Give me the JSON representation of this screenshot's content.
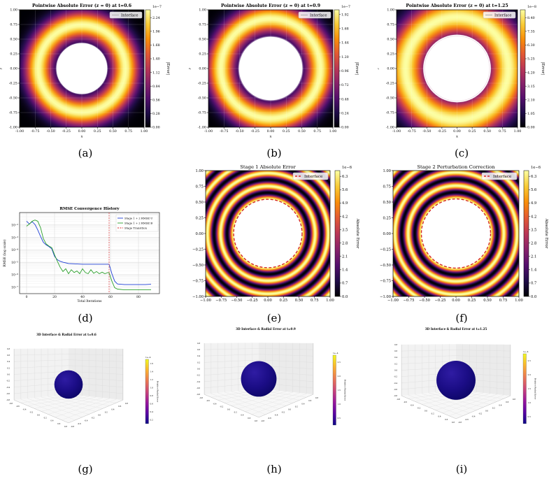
{
  "palette": {
    "inferno": [
      "#000004",
      "#1f0c48",
      "#550f6d",
      "#88226a",
      "#ba3655",
      "#e35933",
      "#f98e09",
      "#f9cb35",
      "#fcffa4"
    ],
    "plasma": [
      "#0d0887",
      "#5b02a3",
      "#9a179b",
      "#cb4678",
      "#eb7852",
      "#fbb32f",
      "#f0f921"
    ],
    "interface_white": "#ffffff",
    "interface_red": "#d62728",
    "stage1_line": "#1f3fd6",
    "stage2_line": "#2ca02c",
    "transition_line": "#d62728"
  },
  "subfigure_labels": [
    "(a)",
    "(b)",
    "(c)",
    "(d)",
    "(e)",
    "(f)",
    "(g)",
    "(h)",
    "(i)"
  ],
  "chart_data": [
    {
      "type": "heatmap",
      "title": "Pointwise Absolute Error (z = 0) at t=0.6",
      "xlabel": "x",
      "ylabel": "y",
      "xlim": [
        -1.0,
        1.0
      ],
      "ylim": [
        -1.0,
        1.0
      ],
      "xticks": [
        "-1.00",
        "-0.75",
        "-0.50",
        "-0.25",
        "0.00",
        "0.25",
        "0.50",
        "0.75",
        "1.00"
      ],
      "yticks": [
        "1.00",
        "0.75",
        "0.50",
        "0.25",
        "0.00",
        "-0.25",
        "-0.50",
        "-0.75",
        "-1.00"
      ],
      "interface_radius": 0.4,
      "peak_radius": 0.7,
      "ring_width": 0.22,
      "legend": [
        "Interface"
      ],
      "colorbar": {
        "label": "|Error|",
        "exponent": "1e−7",
        "ticks": [
          "2.24",
          "1.96",
          "1.68",
          "1.40",
          "1.12",
          "0.84",
          "0.56",
          "0.28",
          "0.00"
        ],
        "range": [
          0,
          2.4
        ]
      }
    },
    {
      "type": "heatmap",
      "title": "Pointwise Absolute Error (z = 0) at t=0.9",
      "xlabel": "x",
      "ylabel": "y",
      "xlim": [
        -1.0,
        1.0
      ],
      "ylim": [
        -1.0,
        1.0
      ],
      "xticks": [
        "-1.00",
        "-0.75",
        "-0.50",
        "-0.25",
        "0.00",
        "0.25",
        "0.50",
        "0.75",
        "1.00"
      ],
      "yticks": [
        "1.00",
        "0.75",
        "0.50",
        "0.25",
        "0.00",
        "-0.25",
        "-0.50",
        "-0.75",
        "-1.00"
      ],
      "interface_radius": 0.5,
      "peak_radius": 0.8,
      "ring_width": 0.22,
      "legend": [
        "Interface"
      ],
      "colorbar": {
        "label": "|Error|",
        "exponent": "1e−7",
        "ticks": [
          "1.92",
          "1.68",
          "1.44",
          "1.20",
          "0.96",
          "0.72",
          "0.48",
          "0.24",
          "0.00"
        ],
        "range": [
          0,
          2.0
        ]
      }
    },
    {
      "type": "heatmap",
      "title": "Pointwise Absolute Error (z = 0) at t=1.25",
      "xlabel": "x",
      "ylabel": "y",
      "xlim": [
        -1.0,
        1.0
      ],
      "ylim": [
        -1.0,
        1.0
      ],
      "xticks": [
        "-1.00",
        "-0.75",
        "-0.50",
        "-0.25",
        "0.00",
        "0.25",
        "0.50",
        "0.75",
        "1.00"
      ],
      "yticks": [
        "1.00",
        "0.75",
        "0.50",
        "0.25",
        "0.00",
        "-0.25",
        "-0.50",
        "-0.75",
        "-1.00"
      ],
      "interface_radius": 0.55,
      "peak_radius": 0.85,
      "ring_width": 0.3,
      "legend": [
        "Interface"
      ],
      "colorbar": {
        "label": "|Error|",
        "exponent": "1e−8",
        "ticks": [
          "8.40",
          "7.35",
          "6.30",
          "5.25",
          "4.20",
          "3.15",
          "2.10",
          "1.05",
          "0.00"
        ],
        "range": [
          0,
          9.0
        ]
      }
    },
    {
      "type": "line",
      "title": "RMSE Convergence History",
      "xlabel": "Total Iterations",
      "ylabel": "RMSE (log scale)",
      "xlim": [
        -5,
        95
      ],
      "log_y": true,
      "ylim": [
        3e-08,
        0.1
      ],
      "xticks": [
        0,
        20,
        40,
        60,
        80
      ],
      "yticks": [
        {
          "v": 0.01,
          "label": "10⁻²"
        },
        {
          "v": 0.001,
          "label": "10⁻³"
        },
        {
          "v": 0.0001,
          "label": "10⁻⁴"
        },
        {
          "v": 1e-05,
          "label": "10⁻⁵"
        },
        {
          "v": 1e-06,
          "label": "10⁻⁶"
        },
        {
          "v": 1e-07,
          "label": "10⁻⁷"
        }
      ],
      "vline": {
        "x": 59,
        "name": "Stage Transition"
      },
      "series": [
        {
          "name": "Stage 1 + 2 RMSE U",
          "x": [
            0,
            2,
            4,
            6,
            8,
            10,
            12,
            14,
            16,
            18,
            20,
            22,
            24,
            26,
            28,
            30,
            35,
            40,
            45,
            50,
            55,
            58,
            59,
            61,
            63,
            65,
            70,
            75,
            80,
            85,
            89
          ],
          "y": [
            0.02,
            0.012,
            0.018,
            0.011,
            0.004,
            0.0012,
            0.0004,
            0.00025,
            0.00018,
            0.00012,
            3e-05,
            1.6e-05,
            1.2e-05,
            1e-05,
            9e-06,
            8e-06,
            7.5e-06,
            7e-06,
            7e-06,
            7e-06,
            7e-06,
            7e-06,
            7e-06,
            1.2e-06,
            3e-07,
            1.8e-07,
            1.6e-07,
            1.6e-07,
            1.6e-07,
            1.6e-07,
            1.7e-07
          ]
        },
        {
          "name": "Stage 1 + 2 RMSE B",
          "x": [
            0,
            2,
            4,
            6,
            8,
            10,
            12,
            14,
            16,
            18,
            20,
            22,
            24,
            26,
            28,
            30,
            32,
            34,
            36,
            38,
            40,
            42,
            44,
            46,
            48,
            50,
            52,
            54,
            56,
            58,
            59,
            61,
            63,
            65,
            70,
            75,
            80,
            85,
            89
          ],
          "y": [
            0.008,
            0.012,
            0.02,
            0.025,
            0.02,
            0.006,
            0.0008,
            0.0003,
            0.0002,
            0.00015,
            4e-05,
            1.2e-05,
            4e-06,
            1.8e-06,
            3e-06,
            1.2e-06,
            2.5e-06,
            1.5e-06,
            2e-06,
            1.2e-06,
            3e-06,
            1.5e-06,
            1.2e-06,
            2.5e-06,
            1.3e-06,
            1.8e-06,
            1.2e-06,
            1.6e-06,
            1.2e-06,
            1.5e-06,
            1.4e-06,
            3e-07,
            9e-08,
            7e-08,
            6e-08,
            6e-08,
            6e-08,
            6e-08,
            6e-08
          ]
        }
      ],
      "legend_position": "upper right"
    },
    {
      "type": "heatmap",
      "title": "Stage 1 Absolute Error",
      "xlim": [
        -1.0,
        1.0
      ],
      "ylim": [
        -1.0,
        1.0
      ],
      "xticks": [
        "−1.00",
        "−0.75",
        "−0.50",
        "−0.25",
        "0.00",
        "0.25",
        "0.50",
        "0.75",
        "1.00"
      ],
      "yticks": [
        "1.00",
        "0.75",
        "0.50",
        "0.25",
        "0.00",
        "−0.25",
        "−0.50",
        "−0.75",
        "−1.00"
      ],
      "interface_radius": 0.55,
      "stripe_period": 0.21,
      "legend": [
        "Interface"
      ],
      "colorbar": {
        "label": "Absolute Error",
        "exponent": "1e−6",
        "ticks": [
          "6.3",
          "5.6",
          "4.9",
          "4.2",
          "3.5",
          "2.8",
          "2.1",
          "1.4",
          "0.7",
          "0.0"
        ],
        "range": [
          0,
          6.6
        ]
      }
    },
    {
      "type": "heatmap",
      "title": "Stage 2 Perturbation Correction",
      "xlim": [
        -1.0,
        1.0
      ],
      "ylim": [
        -1.0,
        1.0
      ],
      "xticks": [
        "−1.00",
        "−0.75",
        "−0.50",
        "−0.25",
        "0.00",
        "0.25",
        "0.50",
        "0.75",
        "1.00"
      ],
      "yticks": [
        "1.00",
        "0.75",
        "0.50",
        "0.25",
        "0.00",
        "−0.25",
        "−0.50",
        "−0.75",
        "−1.00"
      ],
      "interface_radius": 0.55,
      "stripe_period": 0.21,
      "legend": [
        "Interface"
      ],
      "colorbar": {
        "label": "Absolute Error",
        "exponent": "1e−6",
        "ticks": [
          "6.3",
          "5.6",
          "4.9",
          "4.2",
          "3.5",
          "2.8",
          "2.1",
          "1.4",
          "0.7",
          "0.0"
        ],
        "range": [
          0,
          6.6
        ]
      }
    },
    {
      "type": "surface3d",
      "title": "3D Interface & Radial Error at t=0.6",
      "sphere_radius": 0.4,
      "colorbar": {
        "label": "Relative Radial Error",
        "exponent": "1e−4",
        "ticks": [
          "1.6",
          "1.4",
          "1.2",
          "1.0",
          "0.8",
          "0.6",
          "0.4",
          "0.2"
        ]
      }
    },
    {
      "type": "surface3d",
      "title": "3D Interface & Radial Error at t=0.9",
      "sphere_radius": 0.5,
      "colorbar": {
        "label": "Relative Radial Error",
        "exponent": "1e−4",
        "ticks": [
          "2.5",
          "2.0",
          "1.5",
          "1.0",
          "0.5"
        ]
      }
    },
    {
      "type": "surface3d",
      "title": "3D Interface & Radial Error at t=1.25",
      "sphere_radius": 0.55,
      "colorbar": {
        "label": "Relative Radial Error",
        "exponent": "1e−4",
        "ticks": [
          "2.5",
          "2.0",
          "1.5",
          "1.0",
          "0.5"
        ]
      }
    }
  ]
}
